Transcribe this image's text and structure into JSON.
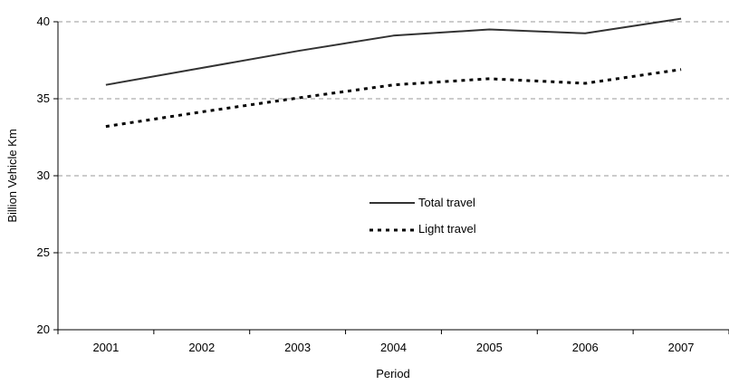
{
  "chart_data": {
    "type": "line",
    "title": "",
    "xlabel": "Period",
    "ylabel": "Billion Vehicle Km",
    "categories": [
      "2001",
      "2002",
      "2003",
      "2004",
      "2005",
      "2006",
      "2007"
    ],
    "ylim": [
      20,
      40
    ],
    "yticks": [
      "20",
      "25",
      "30",
      "35",
      "40"
    ],
    "grid": "horizontal dashed",
    "legend_position": "center",
    "series": [
      {
        "name": "Total travel",
        "style": "solid",
        "color": "#333333",
        "values": [
          35.9,
          37.0,
          38.1,
          39.1,
          39.5,
          39.25,
          40.2
        ]
      },
      {
        "name": "Light travel",
        "style": "dotted",
        "color": "#000000",
        "values": [
          33.2,
          34.15,
          35.05,
          35.9,
          36.3,
          36.0,
          36.9
        ]
      }
    ]
  }
}
